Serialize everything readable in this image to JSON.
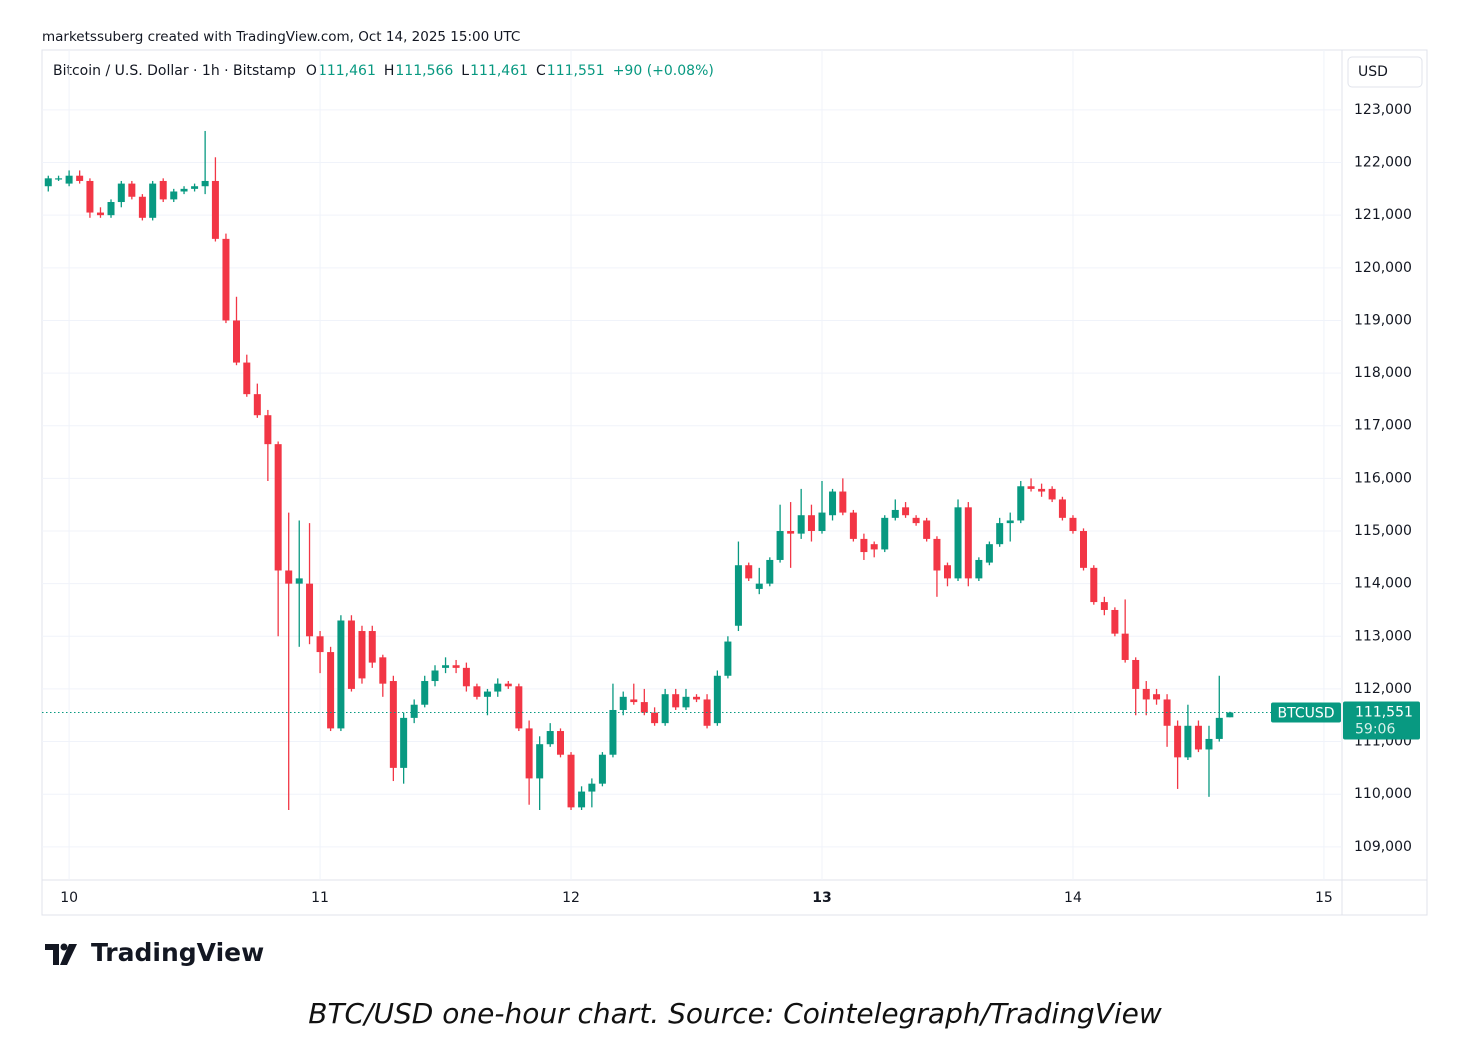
{
  "attribution": "marketssuberg created with TradingView.com, Oct 14, 2025 15:00 UTC",
  "chart_data": {
    "type": "candlestick",
    "symbol": "Bitcoin / U.S. Dollar · 1h · Bitstamp",
    "legend_values": [
      {
        "key": "O",
        "value": "111,461"
      },
      {
        "key": "H",
        "value": "111,566"
      },
      {
        "key": "L",
        "value": "111,461"
      },
      {
        "key": "C",
        "value": "111,551"
      }
    ],
    "change": "+90 (+0.08%)",
    "currency": "USD",
    "ticker_tag": "BTCUSD",
    "last_price_label": "111,551",
    "countdown": "59:06",
    "up_color": "#089981",
    "down_color": "#f23645",
    "grid": true,
    "x": [
      9.917,
      9.958,
      10,
      10.042,
      10.083,
      10.125,
      10.167,
      10.208,
      10.25,
      10.292,
      10.333,
      10.375,
      10.417,
      10.458,
      10.5,
      10.542,
      10.583,
      10.625,
      10.667,
      10.708,
      10.75,
      10.792,
      10.833,
      10.875,
      10.917,
      10.958,
      11,
      11.042,
      11.083,
      11.125,
      11.167,
      11.208,
      11.25,
      11.292,
      11.333,
      11.375,
      11.417,
      11.458,
      11.5,
      11.542,
      11.583,
      11.625,
      11.667,
      11.708,
      11.75,
      11.792,
      11.833,
      11.875,
      11.917,
      11.958,
      12,
      12.042,
      12.083,
      12.125,
      12.167,
      12.208,
      12.25,
      12.292,
      12.333,
      12.375,
      12.417,
      12.458,
      12.5,
      12.542,
      12.583,
      12.625,
      12.667,
      12.708,
      12.75,
      12.792,
      12.833,
      12.875,
      12.917,
      12.958,
      13,
      13.042,
      13.083,
      13.125,
      13.167,
      13.208,
      13.25,
      13.292,
      13.333,
      13.375,
      13.417,
      13.458,
      13.5,
      13.542,
      13.583,
      13.625,
      13.667,
      13.708,
      13.75,
      13.792,
      13.833,
      13.875,
      13.917,
      13.958,
      14,
      14.042,
      14.083,
      14.125,
      14.167,
      14.208,
      14.25,
      14.292,
      14.333,
      14.375,
      14.417,
      14.458,
      14.5,
      14.542,
      14.583,
      14.625
    ],
    "open": [
      121550,
      121700,
      121600,
      121750,
      121650,
      121050,
      121000,
      121250,
      121600,
      121350,
      120950,
      121650,
      121300,
      121450,
      121500,
      121550,
      121650,
      120550,
      119000,
      118200,
      117600,
      117200,
      116650,
      114250,
      114000,
      114000,
      113000,
      112700,
      111250,
      113300,
      113100,
      113100,
      112600,
      112150,
      110500,
      111450,
      111700,
      112150,
      112400,
      112450,
      112400,
      112050,
      111850,
      111950,
      112100,
      112050,
      111250,
      110300,
      110950,
      111200,
      110750,
      109750,
      110050,
      110200,
      110750,
      111600,
      111800,
      111750,
      111550,
      111350,
      111900,
      111650,
      111850,
      111800,
      111350,
      112250,
      113200,
      114350,
      113900,
      114000,
      114450,
      115000,
      114950,
      115300,
      115000,
      115300,
      115750,
      115350,
      114850,
      114750,
      114650,
      115250,
      115450,
      115250,
      115200,
      114850,
      114350,
      114100,
      115450,
      114100,
      114400,
      114750,
      115150,
      115200,
      115850,
      115800,
      115800,
      115600,
      115250,
      115000,
      114300,
      113650,
      113500,
      113050,
      112550,
      112000,
      111900,
      111800,
      111300,
      110700,
      111300,
      110850,
      111050,
      111461
    ],
    "high": [
      121750,
      121750,
      121850,
      121850,
      121700,
      121150,
      121300,
      121650,
      121650,
      121400,
      121650,
      121700,
      121500,
      121550,
      121600,
      122600,
      122100,
      120650,
      119450,
      118350,
      117800,
      117300,
      116700,
      115350,
      115200,
      115150,
      113100,
      112800,
      113400,
      113400,
      113200,
      113200,
      112650,
      112250,
      111550,
      111800,
      112250,
      112450,
      112600,
      112550,
      112500,
      112100,
      112000,
      112200,
      112150,
      112100,
      111400,
      111100,
      111350,
      111250,
      110800,
      110150,
      110300,
      110800,
      112100,
      111950,
      112100,
      112000,
      111650,
      112000,
      112000,
      112000,
      111900,
      111900,
      112350,
      113000,
      114800,
      114400,
      114300,
      114500,
      115500,
      115550,
      115800,
      115500,
      115950,
      115800,
      116000,
      115400,
      114950,
      114800,
      115300,
      115600,
      115550,
      115300,
      115250,
      114900,
      114400,
      115600,
      115550,
      114500,
      114800,
      115250,
      115350,
      115950,
      116000,
      115900,
      115850,
      115650,
      115300,
      115050,
      114350,
      113750,
      113550,
      113700,
      112600,
      112150,
      112000,
      111900,
      111400,
      111700,
      111400,
      111300,
      112250,
      111566
    ],
    "low": [
      121450,
      121650,
      121550,
      121600,
      120950,
      120950,
      120950,
      121150,
      121300,
      120900,
      120900,
      121250,
      121250,
      121400,
      121450,
      121400,
      120500,
      118950,
      118150,
      117550,
      117150,
      115950,
      113000,
      109700,
      112800,
      112850,
      112300,
      111200,
      111200,
      111950,
      112100,
      112400,
      111850,
      110250,
      110200,
      111350,
      111650,
      112050,
      112300,
      112300,
      111950,
      111800,
      111500,
      111850,
      112000,
      111200,
      109800,
      109700,
      110900,
      110700,
      109700,
      109700,
      109750,
      110150,
      110700,
      111500,
      111700,
      111500,
      111300,
      111300,
      111600,
      111600,
      111750,
      111250,
      111300,
      112200,
      113100,
      114050,
      113800,
      113950,
      114400,
      114300,
      114850,
      114800,
      114950,
      115200,
      115300,
      114800,
      114450,
      114500,
      114600,
      115200,
      115250,
      115100,
      114800,
      113750,
      113950,
      114050,
      113950,
      114050,
      114350,
      114700,
      114800,
      115150,
      115750,
      115650,
      115550,
      115200,
      114950,
      114250,
      113600,
      113400,
      113000,
      112500,
      111500,
      111500,
      111700,
      110900,
      110100,
      110650,
      110800,
      109950,
      111000,
      111461
    ],
    "close": [
      121700,
      121700,
      121750,
      121650,
      121050,
      121000,
      121250,
      121600,
      121350,
      120950,
      121600,
      121300,
      121450,
      121500,
      121550,
      121650,
      120550,
      119000,
      118200,
      117600,
      117200,
      116650,
      114250,
      114000,
      114100,
      113000,
      112700,
      111250,
      113300,
      112000,
      112200,
      112500,
      112100,
      110500,
      111450,
      111700,
      112150,
      112350,
      112450,
      112400,
      112050,
      111850,
      111950,
      112100,
      112050,
      111250,
      110300,
      110950,
      111200,
      110750,
      109750,
      110050,
      110200,
      110750,
      111600,
      111850,
      111750,
      111550,
      111350,
      111900,
      111650,
      111850,
      111800,
      111300,
      112250,
      112900,
      114350,
      114100,
      114000,
      114450,
      115000,
      114950,
      115300,
      115000,
      115350,
      115750,
      115350,
      114850,
      114600,
      114650,
      115250,
      115400,
      115300,
      115150,
      114850,
      114250,
      114100,
      115450,
      114100,
      114450,
      114750,
      115150,
      115200,
      115850,
      115800,
      115750,
      115600,
      115250,
      115000,
      114300,
      113650,
      113500,
      113050,
      112550,
      112000,
      111800,
      111800,
      111300,
      110700,
      111300,
      110850,
      111050,
      111450,
      111551
    ],
    "xlim": [
      9.892,
      15.072
    ],
    "xticks": [
      10,
      11,
      12,
      13,
      14,
      15
    ],
    "bold_xtick": 13,
    "ylim": [
      108370,
      124100
    ],
    "yticks": [
      {
        "value": 109000,
        "label": "109,000"
      },
      {
        "value": 110000,
        "label": "110,000"
      },
      {
        "value": 111000,
        "label": "111,000"
      },
      {
        "value": 112000,
        "label": "112,000"
      },
      {
        "value": 113000,
        "label": "113,000"
      },
      {
        "value": 114000,
        "label": "114,000"
      },
      {
        "value": 115000,
        "label": "115,000"
      },
      {
        "value": 116000,
        "label": "116,000"
      },
      {
        "value": 117000,
        "label": "117,000"
      },
      {
        "value": 118000,
        "label": "118,000"
      },
      {
        "value": 119000,
        "label": "119,000"
      },
      {
        "value": 120000,
        "label": "120,000"
      },
      {
        "value": 121000,
        "label": "121,000"
      },
      {
        "value": 122000,
        "label": "122,000"
      },
      {
        "value": 123000,
        "label": "123,000"
      }
    ]
  },
  "logo": "TradingView",
  "caption": "BTC/USD one-hour chart. Source: Cointelegraph/TradingView"
}
